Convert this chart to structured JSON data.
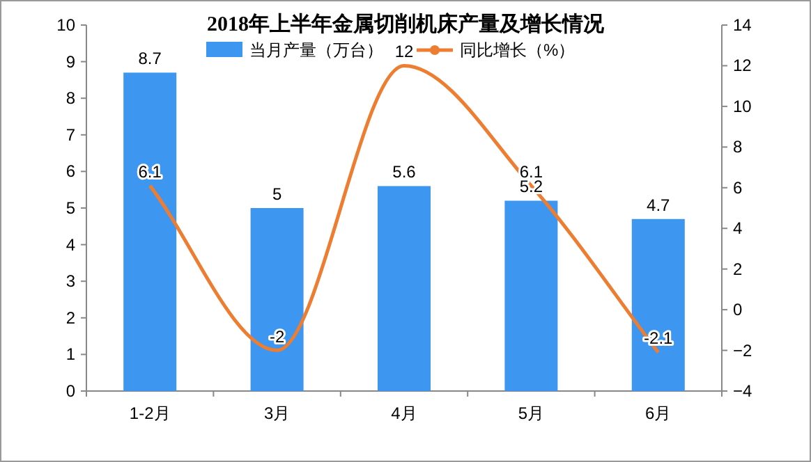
{
  "chart_data": {
    "type": "bar",
    "title": "2018年上半年金属切削机床产量及增长情况",
    "categories": [
      "1-2月",
      "3月",
      "4月",
      "5月",
      "6月"
    ],
    "series": [
      {
        "name": "当月产量（万台）",
        "color": "#3d97f0",
        "values": [
          8.7,
          5,
          5.6,
          5.2,
          4.7
        ]
      },
      {
        "name": "同比增长（%）",
        "type": "line",
        "axis": "y2",
        "color": "#ed7d31",
        "values": [
          6.1,
          -2,
          12,
          6.1,
          -2.1
        ]
      }
    ],
    "ylim": [
      0,
      10
    ],
    "yticks": [
      0,
      1,
      2,
      3,
      4,
      5,
      6,
      7,
      8,
      9,
      10
    ],
    "y2lim": [
      -4,
      14
    ],
    "y2ticks": [
      -4,
      -2,
      0,
      2,
      4,
      6,
      8,
      10,
      12,
      14
    ],
    "data_labels": true,
    "legend": "top",
    "grid": false
  }
}
